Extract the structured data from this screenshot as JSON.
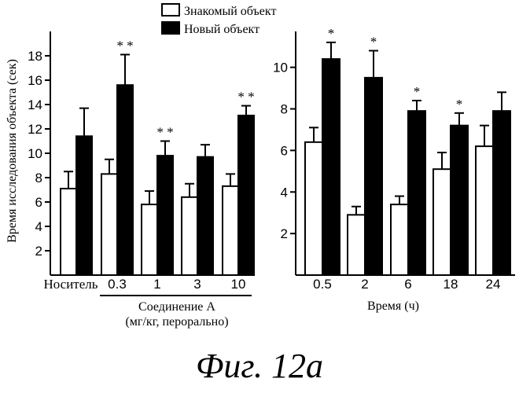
{
  "legend": {
    "familiar_label": "Знакомый объект",
    "novel_label": "Новый объект"
  },
  "caption": "Фиг. 12a",
  "colors": {
    "familiar_fill": "#ffffff",
    "novel_fill": "#000000",
    "stroke": "#000000"
  },
  "chart_data": [
    {
      "type": "bar",
      "ylabel": "Время исследования объекта (сек)",
      "ylim": [
        0,
        20
      ],
      "yticks": [
        2,
        4,
        6,
        8,
        10,
        12,
        14,
        16,
        18
      ],
      "categories": [
        "Носитель",
        "0.3",
        "1",
        "3",
        "10"
      ],
      "group_label_lines": [
        "Соединение А",
        "(мг/кг, перорально)"
      ],
      "series": [
        {
          "name": "Знакомый объект",
          "values": [
            7.1,
            8.3,
            5.8,
            6.4,
            7.3
          ],
          "errors": [
            1.4,
            1.2,
            1.1,
            1.1,
            1.0
          ]
        },
        {
          "name": "Новый объект",
          "values": [
            11.4,
            15.6,
            9.8,
            9.7,
            13.1
          ],
          "errors": [
            2.3,
            2.5,
            1.2,
            1.0,
            0.8
          ]
        }
      ],
      "significance": [
        "",
        "* *",
        "* *",
        "",
        "* *"
      ],
      "grid": false
    },
    {
      "type": "bar",
      "xlabel": "Время (ч)",
      "ylim": [
        0,
        11.5
      ],
      "yticks": [
        2,
        4,
        6,
        8,
        10
      ],
      "categories": [
        "0.5",
        "2",
        "6",
        "18",
        "24"
      ],
      "series": [
        {
          "name": "Знакомый объект",
          "values": [
            6.4,
            2.9,
            3.4,
            5.1,
            6.2
          ],
          "errors": [
            0.7,
            0.4,
            0.4,
            0.8,
            1.0
          ]
        },
        {
          "name": "Новый объект",
          "values": [
            10.4,
            9.5,
            7.9,
            7.2,
            7.9
          ],
          "errors": [
            0.8,
            1.3,
            0.5,
            0.6,
            0.9
          ]
        }
      ],
      "significance": [
        "*",
        "*",
        "*",
        "*",
        ""
      ],
      "grid": false
    }
  ]
}
